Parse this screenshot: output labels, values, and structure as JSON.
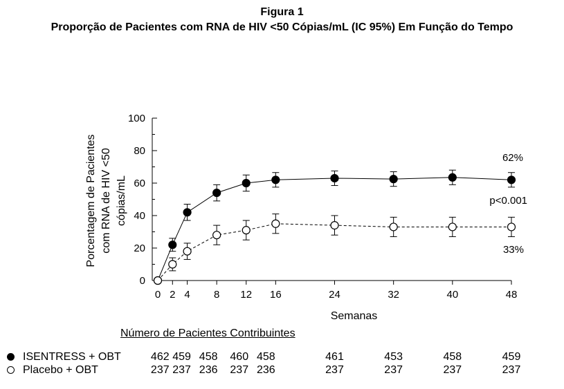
{
  "figure": {
    "heading": "Figura 1",
    "title": "Proporção de Pacientes com RNA de HIV <50 Cópias/mL (IC 95%) Em Função do Tempo"
  },
  "chart_data": {
    "type": "line",
    "xlabel": "Semanas",
    "ylabel_lines": [
      "Porcentagem de Pacientes",
      "com RNA de HIV <50",
      "cópias/mL"
    ],
    "x_ticks": [
      0,
      2,
      4,
      8,
      12,
      16,
      24,
      32,
      40,
      48
    ],
    "y_ticks": [
      0,
      20,
      40,
      60,
      80,
      100
    ],
    "xlim": [
      0,
      48
    ],
    "ylim": [
      0,
      100
    ],
    "grid": false,
    "series": [
      {
        "name": "ISENTRESS + OBT",
        "marker": "filled-circle",
        "line_style": "solid",
        "x": [
          0,
          2,
          4,
          8,
          12,
          16,
          24,
          32,
          40,
          48
        ],
        "y": [
          0,
          22,
          42,
          54,
          60,
          62,
          63,
          62.5,
          63.5,
          62
        ],
        "ci_low": [
          0,
          18,
          37,
          49,
          55,
          57.5,
          58.5,
          58,
          59,
          57.5
        ],
        "ci_high": [
          0,
          26,
          47,
          59,
          65,
          66.5,
          67.5,
          67,
          68,
          66.5
        ]
      },
      {
        "name": "Placebo + OBT",
        "marker": "open-circle",
        "line_style": "dashed",
        "x": [
          0,
          2,
          4,
          8,
          12,
          16,
          24,
          32,
          40,
          48
        ],
        "y": [
          0,
          10,
          18,
          28,
          31,
          35,
          34,
          33,
          33,
          33
        ],
        "ci_low": [
          0,
          6,
          13,
          22,
          25,
          29,
          28,
          27,
          27,
          27
        ],
        "ci_high": [
          0,
          14,
          23,
          34,
          37,
          41,
          40,
          39,
          39,
          39
        ]
      }
    ],
    "annotations": {
      "top_value": "62%",
      "p_value": "p<0.001",
      "bottom_value": "33%"
    }
  },
  "patients_table": {
    "heading": "Número de Pacientes Contribuintes",
    "rows": [
      {
        "label": "ISENTRESS + OBT",
        "marker": "filled",
        "values": [
          "462",
          "459",
          "458",
          "460",
          "458",
          "461",
          "453",
          "458",
          "459"
        ]
      },
      {
        "label": "Placebo + OBT",
        "marker": "open",
        "values": [
          "237",
          "237",
          "236",
          "237",
          "236",
          "237",
          "237",
          "237",
          "237"
        ]
      }
    ]
  }
}
